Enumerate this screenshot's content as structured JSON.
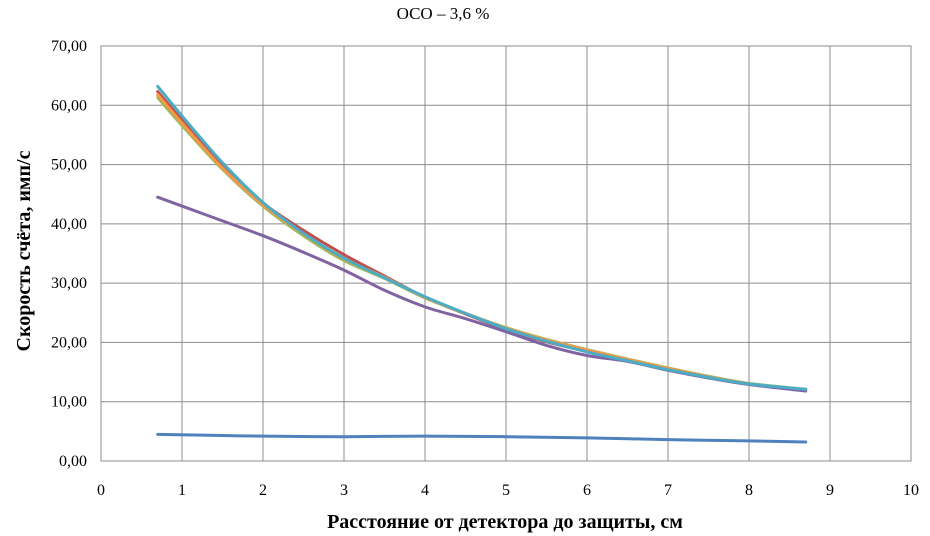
{
  "chart_data": {
    "type": "line",
    "title": "ОСО – 3,6 %",
    "xlabel": "Расстояние от детектора до защиты, см",
    "ylabel": "Скорость счёта, имп/с",
    "xlim": [
      0,
      10
    ],
    "ylim": [
      0,
      70
    ],
    "x_ticks": [
      "0",
      "1",
      "2",
      "3",
      "4",
      "5",
      "6",
      "7",
      "8",
      "9",
      "10"
    ],
    "y_ticks": [
      "0,00",
      "10,00",
      "20,00",
      "30,00",
      "40,00",
      "50,00",
      "60,00",
      "70,00"
    ],
    "grid": true,
    "series": [
      {
        "color": "#c0504d",
        "x": [
          0.7,
          1.0,
          1.5,
          2.0,
          2.5,
          3.0,
          3.5,
          4.0,
          4.5,
          5.0,
          5.5,
          6.0,
          6.5,
          7.0,
          7.5,
          8.0,
          8.7
        ],
        "values": [
          62.3,
          57.5,
          49.8,
          43.5,
          38.9,
          34.8,
          31.2,
          27.6,
          24.8,
          22.2,
          20.1,
          18.5,
          17.0,
          15.6,
          14.2,
          13.0,
          12.0
        ]
      },
      {
        "color": "#9bbb59",
        "x": [
          0.7,
          1.0,
          1.5,
          2.0,
          2.5,
          3.0,
          3.5,
          4.0,
          4.5,
          5.0,
          5.5,
          6.0,
          6.5,
          7.0,
          7.5,
          8.0,
          8.7
        ],
        "values": [
          61.3,
          56.6,
          49.2,
          43.0,
          38.0,
          33.8,
          30.8,
          27.5,
          24.9,
          22.5,
          20.5,
          18.8,
          17.2,
          15.7,
          14.3,
          13.1,
          12.1
        ]
      },
      {
        "color": "#f79646",
        "x": [
          0.7,
          1.0,
          1.5,
          2.0,
          2.5,
          3.0,
          3.5,
          4.0,
          4.5,
          5.0,
          5.5,
          6.0,
          6.5,
          7.0,
          7.5,
          8.0,
          8.7
        ],
        "values": [
          61.8,
          57.0,
          49.4,
          43.2,
          38.3,
          34.1,
          31.0,
          27.6,
          24.9,
          22.4,
          20.4,
          18.7,
          17.1,
          15.6,
          14.2,
          13.0,
          12.0
        ]
      },
      {
        "color": "#8064a2",
        "x": [
          0.7,
          1.0,
          1.5,
          2.0,
          2.5,
          3.0,
          3.5,
          4.0,
          4.5,
          5.0,
          5.5,
          6.0,
          6.5,
          7.0,
          7.5,
          8.0,
          8.7
        ],
        "values": [
          44.5,
          43.0,
          40.5,
          38.0,
          35.2,
          32.2,
          28.8,
          26.0,
          24.0,
          21.8,
          19.5,
          17.8,
          16.8,
          15.3,
          14.0,
          12.9,
          11.8
        ]
      },
      {
        "color": "#4bacc6",
        "x": [
          0.7,
          1.0,
          1.5,
          2.0,
          2.5,
          3.0,
          3.5,
          4.0,
          4.5,
          5.0,
          5.5,
          6.0,
          6.5,
          7.0,
          7.5,
          8.0,
          8.7
        ],
        "values": [
          63.2,
          58.2,
          50.3,
          43.6,
          38.4,
          34.2,
          30.9,
          27.7,
          24.9,
          22.3,
          20.2,
          18.4,
          16.9,
          15.4,
          14.1,
          13.0,
          12.1
        ]
      },
      {
        "color": "#4f81bd",
        "x": [
          0.7,
          1.5,
          2.0,
          3.0,
          4.0,
          5.0,
          6.0,
          7.0,
          8.0,
          8.7
        ],
        "values": [
          4.5,
          4.3,
          4.2,
          4.1,
          4.2,
          4.1,
          3.9,
          3.6,
          3.4,
          3.2
        ]
      }
    ]
  }
}
